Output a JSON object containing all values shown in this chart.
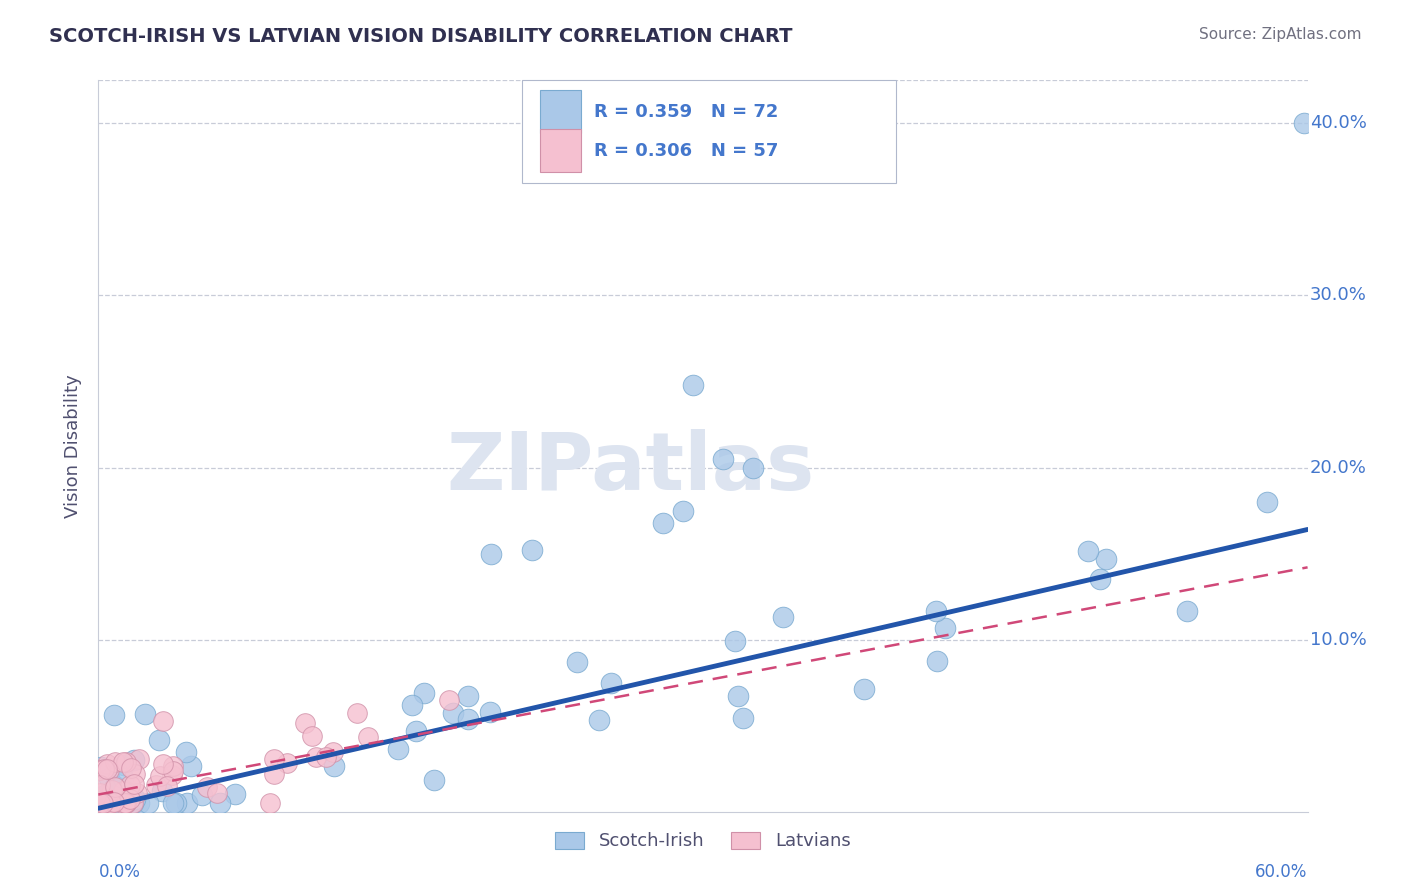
{
  "title": "SCOTCH-IRISH VS LATVIAN VISION DISABILITY CORRELATION CHART",
  "source": "Source: ZipAtlas.com",
  "ylabel": "Vision Disability",
  "xlim": [
    0,
    0.6
  ],
  "ylim": [
    0,
    0.425
  ],
  "yticks": [
    0.1,
    0.2,
    0.3,
    0.4
  ],
  "ytick_labels": [
    "10.0%",
    "20.0%",
    "30.0%",
    "40.0%"
  ],
  "scotch_irish_R": 0.359,
  "scotch_irish_N": 72,
  "latvian_R": 0.306,
  "latvian_N": 57,
  "scotch_irish_color": "#aac8e8",
  "scotch_irish_edge_color": "#7aaad0",
  "scotch_irish_line_color": "#2255aa",
  "latvian_color": "#f5c0d0",
  "latvian_edge_color": "#d090a8",
  "latvian_line_color": "#d04878",
  "grid_color": "#c8ccd8",
  "tick_color": "#4477cc",
  "title_color": "#303050",
  "ylabel_color": "#505070",
  "watermark_color": "#dde4f0",
  "si_line_intercept": 0.002,
  "si_line_slope": 0.27,
  "la_line_intercept": 0.01,
  "la_line_slope": 0.22
}
